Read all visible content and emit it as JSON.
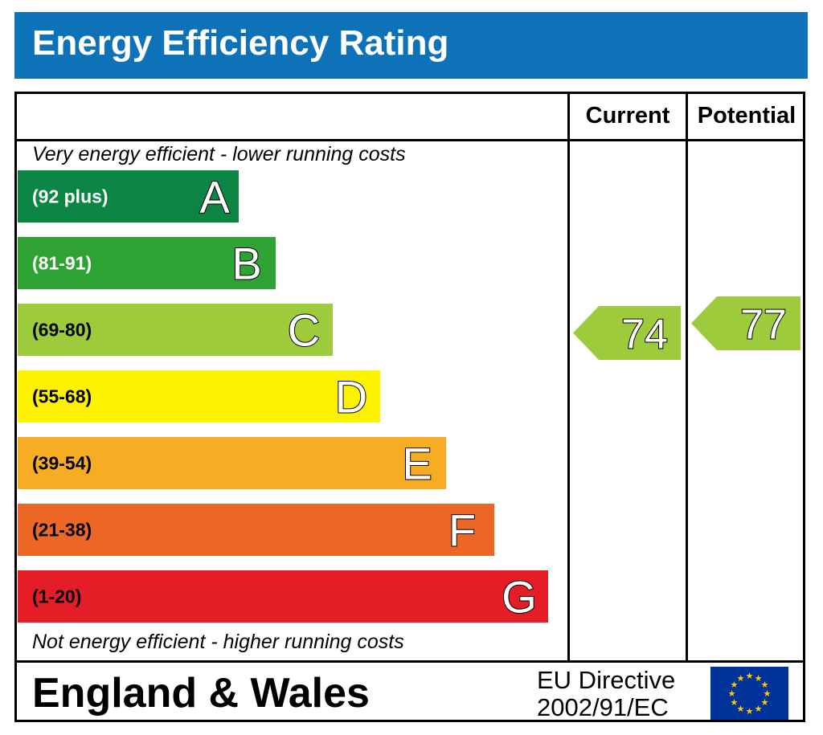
{
  "header": {
    "title": "Energy Efficiency Rating"
  },
  "columns": {
    "current": "Current",
    "potential": "Potential"
  },
  "notes": {
    "top": "Very energy efficient - lower running costs",
    "bottom": "Not energy efficient - higher running costs"
  },
  "footer": {
    "region": "England & Wales",
    "directive_line1": "EU Directive",
    "directive_line2": "2002/91/EC",
    "flag_icon": "eu-flag-icon"
  },
  "chart_data": {
    "type": "bar",
    "title": "Energy Efficiency Rating",
    "bands": [
      {
        "letter": "A",
        "range": "(92 plus)",
        "color": "#0c8443",
        "label_color": "#ffffff"
      },
      {
        "letter": "B",
        "range": "(81-91)",
        "color": "#2ea232",
        "label_color": "#ffffff"
      },
      {
        "letter": "C",
        "range": "(69-80)",
        "color": "#9dcb3c",
        "label_color": "#000000"
      },
      {
        "letter": "D",
        "range": "(55-68)",
        "color": "#fff200",
        "label_color": "#000000"
      },
      {
        "letter": "E",
        "range": "(39-54)",
        "color": "#f6ad23",
        "label_color": "#000000"
      },
      {
        "letter": "F",
        "range": "(21-38)",
        "color": "#ec6726",
        "label_color": "#000000"
      },
      {
        "letter": "G",
        "range": "(1-20)",
        "color": "#e31e26",
        "label_color": "#000000"
      }
    ],
    "current": {
      "value": 74,
      "band": "C",
      "color": "#9dcb3c"
    },
    "potential": {
      "value": 77,
      "band": "C",
      "color": "#9dcb3c"
    }
  }
}
